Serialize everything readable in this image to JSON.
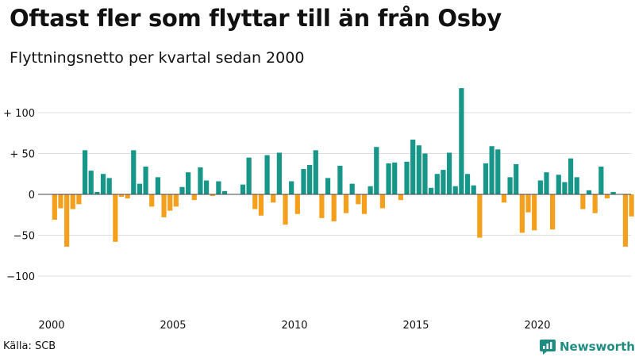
{
  "title": "Oftast fler som flyttar till än från Osby",
  "subtitle": "Flyttningsnetto per kvartal sedan 2000",
  "source": "Källa: SCB",
  "brand": {
    "name": "Newsworthy",
    "icon": "newsworthy-logo-icon"
  },
  "colors": {
    "positive": "#17968a",
    "negative": "#f5a01c",
    "grid": "#dddddd",
    "baseline": "#444444",
    "text": "#111111"
  },
  "chart_data": {
    "type": "bar",
    "title": "Oftast fler som flyttar till än från Osby",
    "subtitle": "Flyttningsnetto per kvartal sedan 2000",
    "ylim": [
      -130,
      135
    ],
    "y_ticks": [
      -100,
      -50,
      0,
      50,
      100
    ],
    "y_tick_labels": [
      "−100",
      "−50",
      "0",
      "+ 50",
      "+ 100"
    ],
    "x_tick_years": [
      2000,
      2005,
      2010,
      2015,
      2020
    ],
    "x_tick_labels": [
      "2000",
      "2005",
      "2010",
      "2015",
      "2020"
    ],
    "grid": "horizontal",
    "legend": "none",
    "start": "2000Q1",
    "values": [
      -31,
      -17,
      -64,
      -18,
      -12,
      54,
      29,
      3,
      25,
      20,
      -58,
      -3,
      -5,
      54,
      13,
      34,
      -15,
      21,
      -28,
      -20,
      -15,
      9,
      27,
      -7,
      33,
      17,
      -2,
      16,
      4,
      0,
      0,
      12,
      45,
      -18,
      -26,
      48,
      -10,
      51,
      -37,
      16,
      -24,
      31,
      36,
      54,
      -29,
      20,
      -33,
      35,
      -23,
      13,
      -12,
      -24,
      10,
      58,
      -17,
      38,
      39,
      -7,
      40,
      67,
      60,
      50,
      8,
      25,
      30,
      51,
      10,
      130,
      25,
      11,
      -53,
      38,
      59,
      55,
      -10,
      21,
      37,
      -47,
      -22,
      -44,
      17,
      27,
      -43,
      24,
      15,
      44,
      21,
      -18,
      5,
      -23,
      34,
      -5,
      3,
      0,
      -64,
      -27
    ]
  }
}
